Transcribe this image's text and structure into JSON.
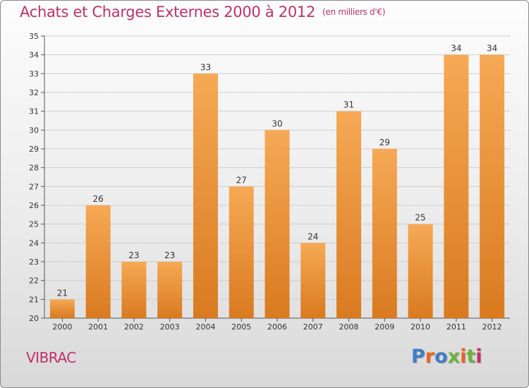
{
  "title": "Achats et Charges Externes 2000 à 2012",
  "unit": "(en milliers d'€)",
  "city": "VIBRAC",
  "logo": {
    "text": "Proxiti",
    "colors": [
      "#3d7fc4",
      "#e8641e",
      "#3d7fc4",
      "#6db33f",
      "#e8641e",
      "#6db33f",
      "#c0306a"
    ]
  },
  "colors": {
    "title": "#c0306a",
    "bar_top": "#f6a955",
    "bar_bottom": "#d97a20",
    "grid": "#cfcfcf"
  },
  "chart_data": {
    "type": "bar",
    "title": "Achats et Charges Externes 2000 à 2012",
    "xlabel": "",
    "ylabel": "",
    "categories": [
      "2000",
      "2001",
      "2002",
      "2003",
      "2004",
      "2005",
      "2006",
      "2007",
      "2008",
      "2009",
      "2010",
      "2011",
      "2012"
    ],
    "values": [
      21,
      26,
      23,
      23,
      33,
      27,
      30,
      24,
      31,
      29,
      25,
      34,
      34
    ],
    "ylim": [
      20,
      35
    ],
    "yticks": [
      20,
      21,
      22,
      23,
      24,
      25,
      26,
      27,
      28,
      29,
      30,
      31,
      32,
      33,
      34,
      35
    ],
    "grid": true,
    "data_labels": true
  }
}
